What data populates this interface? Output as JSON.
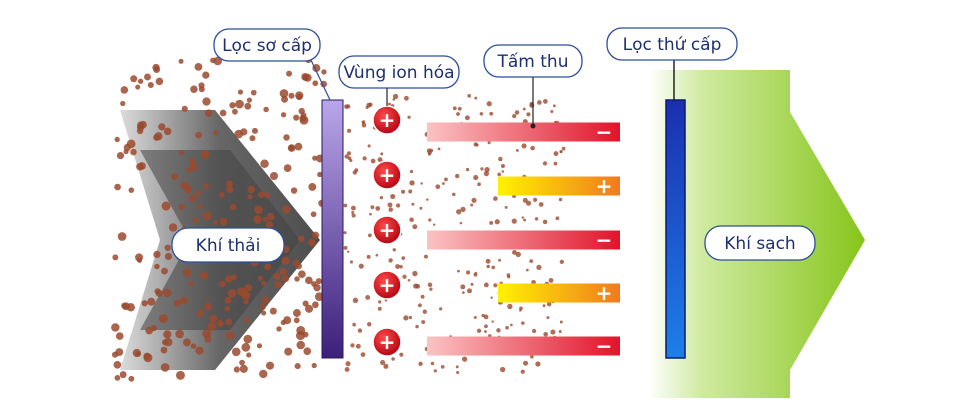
{
  "labels": {
    "primary_filter": "Lọc sơ cấp",
    "ionization_zone": "Vùng ion hóa",
    "collector_plates": "Tấm thu",
    "secondary_filter": "Lọc thứ cấp",
    "exhaust_air": "Khí thải",
    "clean_air": "Khí sạch"
  },
  "ions": [
    "+",
    "+",
    "+",
    "+",
    "+"
  ],
  "plates": [
    {
      "sign": "−"
    },
    {
      "sign": "+"
    },
    {
      "sign": "−"
    },
    {
      "sign": "+"
    },
    {
      "sign": "−"
    }
  ]
}
